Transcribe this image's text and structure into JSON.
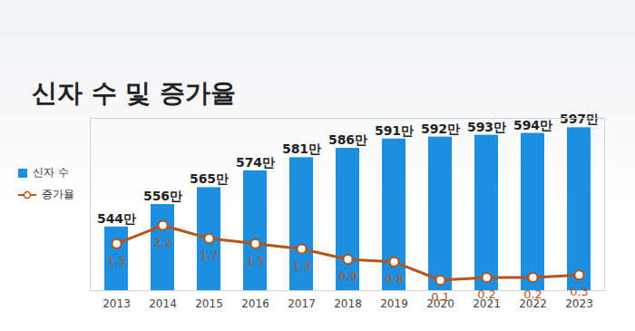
{
  "chart_data": {
    "type": "bar",
    "title": "신자 수 및 증가율",
    "categories": [
      "2013",
      "2014",
      "2015",
      "2016",
      "2017",
      "2018",
      "2019",
      "2020",
      "2021",
      "2022",
      "2023"
    ],
    "series": [
      {
        "name": "신자 수",
        "type": "bar",
        "color": "#1e8fe0",
        "values": [
          544,
          556,
          565,
          574,
          581,
          586,
          591,
          592,
          593,
          594,
          597
        ],
        "value_labels": [
          "544만",
          "556만",
          "565만",
          "574만",
          "581만",
          "586만",
          "591만",
          "592만",
          "593만",
          "594만",
          "597만"
        ]
      },
      {
        "name": "증가율",
        "type": "line",
        "axis": "y2",
        "color": "#b5541b",
        "marker": "circle",
        "values": [
          1.5,
          2.2,
          1.7,
          1.5,
          1.3,
          0.9,
          0.8,
          0.1,
          0.2,
          0.2,
          0.3
        ]
      }
    ],
    "ylim": [
      510,
      602
    ],
    "y2lim": [
      -0.3,
      6.3
    ],
    "data_labels": true,
    "tick_labels": "x",
    "legend": "left",
    "grid": false
  }
}
